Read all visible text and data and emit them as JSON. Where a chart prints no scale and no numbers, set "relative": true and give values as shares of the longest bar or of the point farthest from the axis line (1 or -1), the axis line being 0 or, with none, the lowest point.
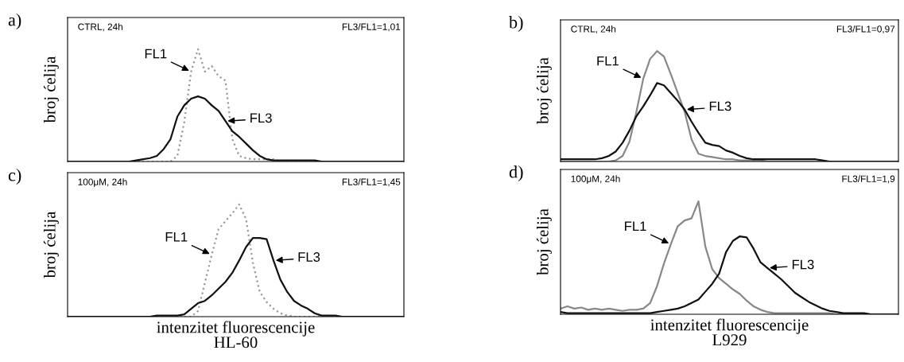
{
  "chart_data": [
    {
      "type": "line",
      "relative": true,
      "ylabel": "broj ćelija",
      "annotations": [
        "a)",
        "CTRL, 24h",
        "FL3/FL1=1,01"
      ],
      "categories": [
        null,
        null,
        null,
        null,
        null,
        null,
        null,
        null,
        null,
        null,
        null,
        null,
        null,
        null,
        null,
        null,
        null,
        null,
        null,
        null,
        null,
        null,
        null,
        null,
        null,
        null,
        null,
        null,
        null,
        null,
        null,
        null,
        null,
        null,
        null,
        null,
        null,
        null,
        null,
        null,
        null,
        null,
        null,
        null,
        null,
        null,
        null,
        null,
        null,
        null
      ],
      "series": [
        {
          "name": "FL1",
          "color": "#999999",
          "line_style": "dotted",
          "values": [
            0,
            0,
            0,
            0,
            0,
            0,
            0,
            0,
            0,
            0,
            0,
            0,
            0,
            0,
            0,
            0,
            0.05,
            0.35,
            0.8,
            1.0,
            0.8,
            0.85,
            0.76,
            0.72,
            0.2,
            0.05,
            0.03,
            0.02,
            0.02,
            0.02,
            0.02,
            0,
            0,
            0,
            0,
            0,
            0,
            0,
            0,
            0,
            0,
            0,
            0,
            0,
            0,
            0,
            0,
            0,
            0,
            0
          ]
        },
        {
          "name": "FL3",
          "color": "#111111",
          "line_style": "solid",
          "values": [
            0,
            0,
            0,
            0,
            0,
            0,
            0,
            0,
            0,
            0,
            0.01,
            0.02,
            0.03,
            0.05,
            0.11,
            0.2,
            0.4,
            0.5,
            0.56,
            0.58,
            0.56,
            0.5,
            0.45,
            0.36,
            0.27,
            0.22,
            0.16,
            0.1,
            0.05,
            0.02,
            0.01,
            0.01,
            0.01,
            0.01,
            0.01,
            0.01,
            0.01,
            0,
            0,
            0,
            0,
            0,
            0,
            0,
            0,
            0,
            0,
            0,
            0,
            0
          ]
        }
      ]
    },
    {
      "type": "line",
      "relative": true,
      "ylabel": "broj ćelija",
      "annotations": [
        "b)",
        "CTRL, 24h",
        "FL3/FL1=0,97"
      ],
      "categories": [
        null,
        null,
        null,
        null,
        null,
        null,
        null,
        null,
        null,
        null,
        null,
        null,
        null,
        null,
        null,
        null,
        null,
        null,
        null,
        null,
        null,
        null,
        null,
        null,
        null,
        null,
        null,
        null,
        null,
        null,
        null,
        null,
        null,
        null,
        null,
        null,
        null,
        null,
        null,
        null,
        null,
        null,
        null,
        null,
        null,
        null,
        null,
        null,
        null,
        null
      ],
      "series": [
        {
          "name": "FL1",
          "color": "#888888",
          "line_style": "solid",
          "values": [
            0,
            0,
            0,
            0,
            0,
            0,
            0,
            0,
            0.01,
            0.05,
            0.18,
            0.45,
            0.75,
            0.93,
            1.0,
            0.95,
            0.79,
            0.62,
            0.45,
            0.2,
            0.07,
            0.05,
            0.04,
            0.03,
            0.02,
            0.02,
            0.01,
            0.01,
            0.01,
            0.01,
            0,
            0,
            0,
            0,
            0,
            0,
            0,
            0,
            0,
            0,
            0,
            0,
            0,
            0,
            0,
            0,
            0,
            0,
            0,
            0
          ]
        },
        {
          "name": "FL3",
          "color": "#111111",
          "line_style": "solid",
          "values": [
            0.02,
            0.02,
            0.02,
            0.02,
            0.02,
            0.02,
            0.03,
            0.05,
            0.09,
            0.17,
            0.28,
            0.41,
            0.5,
            0.6,
            0.71,
            0.69,
            0.62,
            0.55,
            0.47,
            0.36,
            0.26,
            0.17,
            0.15,
            0.14,
            0.1,
            0.08,
            0.05,
            0.03,
            0.02,
            0.02,
            0.02,
            0.02,
            0.02,
            0.02,
            0.02,
            0.02,
            0.02,
            0.02,
            0.01,
            0,
            0,
            0,
            0,
            0,
            0,
            0,
            0,
            0,
            0,
            0
          ]
        }
      ]
    },
    {
      "type": "line",
      "relative": true,
      "ylabel": "broj ćelija",
      "xlabel": "intenzitet fluorescencije\nHL-60",
      "annotations": [
        "c)",
        "100μM, 24h",
        "FL3/FL1=1,45"
      ],
      "categories": [
        null,
        null,
        null,
        null,
        null,
        null,
        null,
        null,
        null,
        null,
        null,
        null,
        null,
        null,
        null,
        null,
        null,
        null,
        null,
        null,
        null,
        null,
        null,
        null,
        null,
        null,
        null,
        null,
        null,
        null,
        null,
        null,
        null,
        null,
        null,
        null,
        null,
        null,
        null,
        null,
        null,
        null,
        null,
        null,
        null,
        null,
        null,
        null,
        null,
        null
      ],
      "series": [
        {
          "name": "FL1",
          "color": "#999999",
          "line_style": "dotted",
          "values": [
            0,
            0,
            0,
            0,
            0,
            0,
            0,
            0,
            0,
            0,
            0,
            0,
            0,
            0,
            0,
            0,
            0,
            0,
            0,
            0.05,
            0.3,
            0.55,
            0.78,
            0.85,
            0.92,
            1.0,
            0.87,
            0.48,
            0.22,
            0.13,
            0.07,
            0.03,
            0.01,
            0,
            0,
            0,
            0,
            0,
            0,
            0,
            0,
            0,
            0,
            0,
            0,
            0,
            0,
            0,
            0,
            0
          ]
        },
        {
          "name": "FL3",
          "color": "#111111",
          "line_style": "solid",
          "values": [
            0,
            0,
            0,
            0,
            0,
            0,
            0,
            0,
            0,
            0,
            0,
            0,
            0,
            0.01,
            0.01,
            0.01,
            0.01,
            0.02,
            0.07,
            0.12,
            0.14,
            0.19,
            0.25,
            0.31,
            0.39,
            0.5,
            0.62,
            0.7,
            0.7,
            0.69,
            0.5,
            0.33,
            0.22,
            0.14,
            0.1,
            0.07,
            0.03,
            0.01,
            0.01,
            0.01,
            0,
            0,
            0,
            0,
            0,
            0,
            0,
            0,
            0,
            0
          ]
        }
      ]
    },
    {
      "type": "line",
      "relative": true,
      "ylabel": "broj ćelija",
      "xlabel": "intenzitet fluorescencije\nL929",
      "annotations": [
        "d)",
        "100μM, 24h",
        "FL3/FL1=1,9"
      ],
      "categories": [
        null,
        null,
        null,
        null,
        null,
        null,
        null,
        null,
        null,
        null,
        null,
        null,
        null,
        null,
        null,
        null,
        null,
        null,
        null,
        null,
        null,
        null,
        null,
        null,
        null,
        null,
        null,
        null,
        null,
        null,
        null,
        null,
        null,
        null,
        null,
        null,
        null,
        null,
        null,
        null,
        null,
        null,
        null,
        null,
        null,
        null,
        null,
        null,
        null,
        null
      ],
      "series": [
        {
          "name": "FL1",
          "color": "#888888",
          "line_style": "solid",
          "values": [
            0.05,
            0.07,
            0.05,
            0.06,
            0.04,
            0.05,
            0.04,
            0.05,
            0.04,
            0.03,
            0.04,
            0.04,
            0.05,
            0.1,
            0.25,
            0.45,
            0.62,
            0.78,
            0.83,
            0.85,
            1.0,
            0.6,
            0.4,
            0.32,
            0.27,
            0.22,
            0.18,
            0.12,
            0.07,
            0.04,
            0.02,
            0.01,
            0.01,
            0.01,
            0.01,
            0.01,
            0.01,
            0.01,
            0.01,
            0.01,
            0,
            0,
            0,
            0,
            0,
            0,
            0,
            0,
            0,
            0
          ]
        },
        {
          "name": "FL3",
          "color": "#111111",
          "line_style": "solid",
          "values": [
            0.02,
            0.01,
            0.01,
            0.01,
            0.01,
            0.01,
            0.01,
            0.01,
            0.01,
            0.01,
            0.01,
            0.01,
            0.01,
            0.01,
            0.02,
            0.03,
            0.04,
            0.05,
            0.07,
            0.1,
            0.13,
            0.2,
            0.27,
            0.36,
            0.55,
            0.65,
            0.69,
            0.68,
            0.58,
            0.46,
            0.41,
            0.36,
            0.31,
            0.25,
            0.19,
            0.15,
            0.11,
            0.08,
            0.05,
            0.03,
            0.02,
            0.01,
            0.01,
            0.01,
            0.01,
            0,
            0,
            0,
            0,
            0
          ]
        }
      ]
    }
  ]
}
